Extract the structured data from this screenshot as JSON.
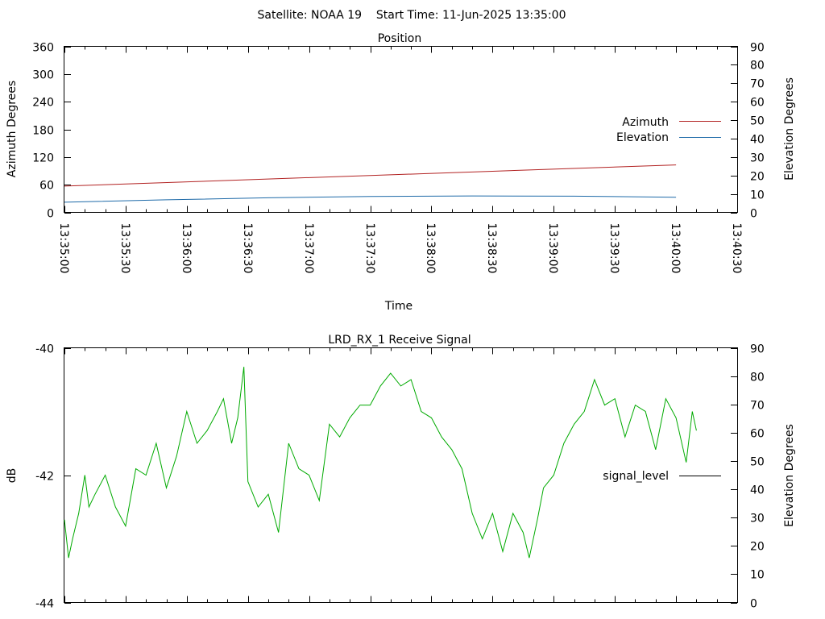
{
  "header": {
    "text": "Satellite: NOAA 19    Start Time: 11-Jun-2025 13:35:00"
  },
  "chart_data": [
    {
      "type": "line",
      "title": "Position",
      "xlabel": "Time",
      "ylabel": "Azimuth Degrees",
      "y2label": "Elevation Degrees",
      "x_ticks": [
        "13:35:00",
        "13:35:30",
        "13:36:00",
        "13:36:30",
        "13:37:00",
        "13:37:30",
        "13:38:00",
        "13:38:30",
        "13:39:00",
        "13:39:30",
        "13:40:00",
        "13:40:30"
      ],
      "xlim_seconds": [
        0,
        330
      ],
      "ylim": [
        0,
        360
      ],
      "y_ticks": [
        "0",
        "60",
        "120",
        "180",
        "240",
        "300",
        "360"
      ],
      "y2lim": [
        0,
        90
      ],
      "y2_ticks": [
        "0",
        "10",
        "20",
        "30",
        "40",
        "50",
        "60",
        "70",
        "80",
        "90"
      ],
      "legend": "right",
      "series": [
        {
          "name": "Azimuth",
          "axis": "y",
          "color": "#b22222",
          "x_seconds": [
            0,
            300
          ],
          "values": [
            57,
            103
          ]
        },
        {
          "name": "Elevation",
          "axis": "y2",
          "color": "#1e6aa8",
          "x_seconds": [
            0,
            50,
            100,
            150,
            200,
            250,
            300
          ],
          "values": [
            5.5,
            6.8,
            7.9,
            8.6,
            8.9,
            8.8,
            8.2
          ]
        }
      ]
    },
    {
      "type": "line",
      "title": "LRD_RX_1 Receive Signal",
      "ylabel": "dB",
      "y2label": "Elevation Degrees",
      "xlim_seconds": [
        0,
        330
      ],
      "ylim": [
        -44,
        -40
      ],
      "y_ticks": [
        "-44",
        "-42",
        "-40"
      ],
      "y2lim": [
        0,
        90
      ],
      "y2_ticks": [
        "0",
        "10",
        "20",
        "30",
        "40",
        "50",
        "60",
        "70",
        "80",
        "90"
      ],
      "legend": "right",
      "series": [
        {
          "name": "signal_level",
          "axis": "y",
          "color": "#00aa00",
          "x_seconds": [
            0,
            2,
            4,
            7,
            10,
            12,
            15,
            20,
            25,
            30,
            35,
            40,
            45,
            50,
            55,
            60,
            65,
            70,
            75,
            78,
            82,
            85,
            88,
            90,
            95,
            100,
            105,
            110,
            115,
            120,
            125,
            130,
            135,
            140,
            145,
            150,
            155,
            160,
            165,
            170,
            175,
            180,
            185,
            190,
            195,
            200,
            205,
            210,
            215,
            220,
            225,
            228,
            232,
            235,
            240,
            245,
            250,
            255,
            260,
            265,
            270,
            275,
            280,
            285,
            290,
            295,
            300,
            305,
            308,
            310
          ],
          "values": [
            -42.7,
            -43.3,
            -43.0,
            -42.6,
            -42.0,
            -42.5,
            -42.3,
            -42.0,
            -42.5,
            -42.8,
            -41.9,
            -42.0,
            -41.5,
            -42.2,
            -41.7,
            -41.0,
            -41.5,
            -41.3,
            -41.0,
            -40.8,
            -41.5,
            -41.1,
            -40.3,
            -42.1,
            -42.5,
            -42.3,
            -42.9,
            -41.5,
            -41.9,
            -42.0,
            -42.4,
            -41.2,
            -41.4,
            -41.1,
            -40.9,
            -40.9,
            -40.6,
            -40.4,
            -40.6,
            -40.5,
            -41.0,
            -41.1,
            -41.4,
            -41.6,
            -41.9,
            -42.6,
            -43.0,
            -42.6,
            -43.2,
            -42.6,
            -42.9,
            -43.3,
            -42.7,
            -42.2,
            -42.0,
            -41.5,
            -41.2,
            -41.0,
            -40.5,
            -40.9,
            -40.8,
            -41.4,
            -40.9,
            -41.0,
            -41.6,
            -40.8,
            -41.1,
            -41.8,
            -41.0,
            -41.3
          ]
        }
      ]
    }
  ]
}
